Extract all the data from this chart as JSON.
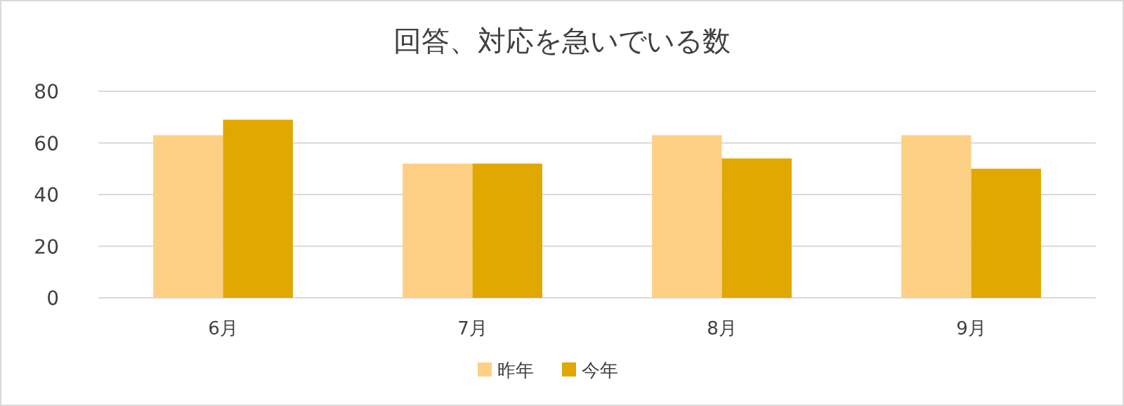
{
  "chart_data": {
    "type": "bar",
    "title": "回答、対応を急いでいる数",
    "categories": [
      "6月",
      "7月",
      "8月",
      "9月"
    ],
    "series": [
      {
        "name": "昨年",
        "color": "#fdd085",
        "values": [
          63,
          52,
          63,
          63
        ]
      },
      {
        "name": "今年",
        "color": "#e0a800",
        "values": [
          69,
          52,
          54,
          50
        ]
      }
    ],
    "ylim": [
      0,
      80
    ],
    "yticks": [
      0,
      20,
      40,
      60,
      80
    ],
    "grid": "y",
    "legend": "bottom"
  }
}
